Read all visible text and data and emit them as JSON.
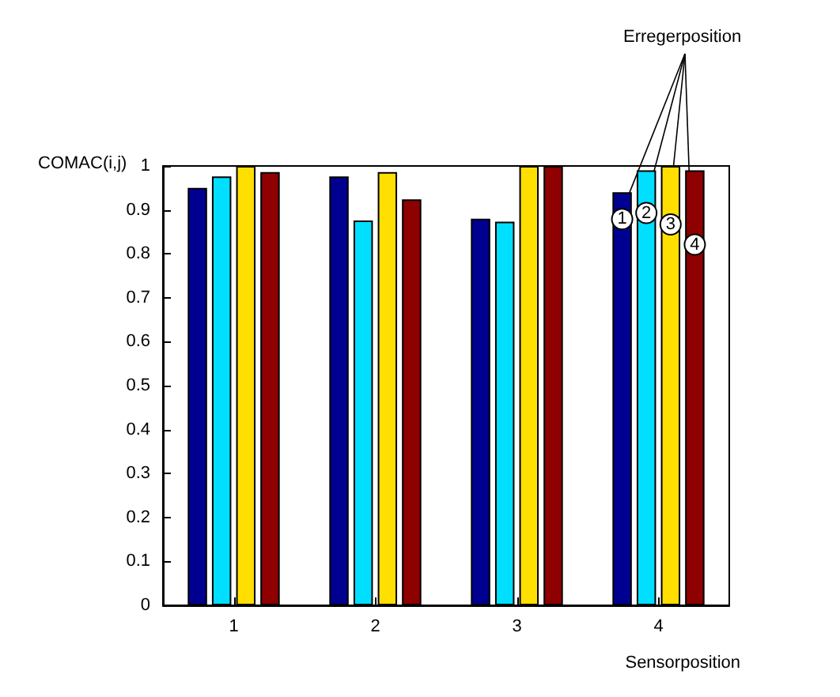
{
  "chart_data": {
    "type": "bar",
    "xlabel": "Sensorposition",
    "ylabel": "COMAC(i,j)",
    "legend_title": "Erregerposition",
    "categories": [
      "1",
      "2",
      "3",
      "4"
    ],
    "series": [
      {
        "name": "1",
        "color": "#000090",
        "values": [
          0.95,
          0.976,
          0.88,
          0.94
        ]
      },
      {
        "name": "2",
        "color": "#00dfff",
        "values": [
          0.976,
          0.876,
          0.873,
          0.99
        ]
      },
      {
        "name": "3",
        "color": "#ffdf00",
        "values": [
          1.0,
          0.986,
          1.0,
          1.0
        ]
      },
      {
        "name": "4",
        "color": "#8f0000",
        "values": [
          0.986,
          0.924,
          1.0,
          0.99
        ]
      }
    ],
    "ylim": [
      0,
      1
    ],
    "yticks": [
      0,
      0.1,
      0.2,
      0.3,
      0.4,
      0.5,
      0.6,
      0.7,
      0.8,
      0.9,
      1
    ],
    "grid": false,
    "legend": "top right"
  }
}
